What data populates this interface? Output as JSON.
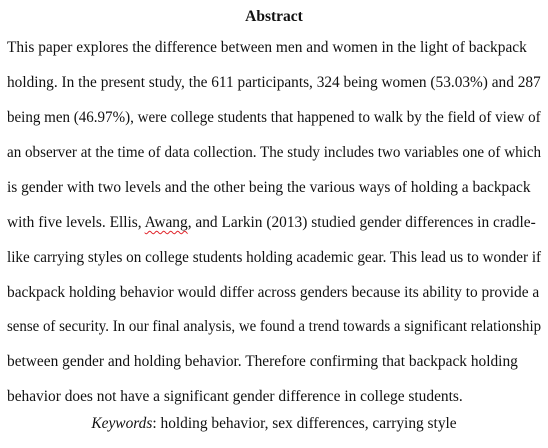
{
  "heading": "Abstract",
  "lines": [
    "This paper explores the difference between men and women in the light of backpack",
    "holding. In the present study, the 611 participants, 324 being women (53.03%) and 287",
    "being men (46.97%), were college students that happened to walk by the field of view of",
    "an observer at the time of data collection. The study includes two variables one of which",
    "is gender with two levels and the other being the various ways of holding a backpack",
    "with five levels. Ellis, Awang, and Larkin (2013) studied gender differences in cradle-",
    "like carrying styles on college students holding academic gear. This lead us to wonder if",
    "backpack holding behavior would differ across genders because its ability to provide a",
    "sense of security. In our final analysis, we found a trend towards a significant relationship",
    "between gender and holding behavior. Therefore confirming that backpack holding",
    "behavior does not have a significant gender difference in college students."
  ],
  "line6": {
    "before": "with five levels. Ellis, ",
    "flagged_word": "Awang",
    "after": ", and Larkin (2013) studied gender differences in cradle-"
  },
  "keywords": {
    "label": "Keywords",
    "text": ": holding behavior, sex differences, carrying style"
  }
}
